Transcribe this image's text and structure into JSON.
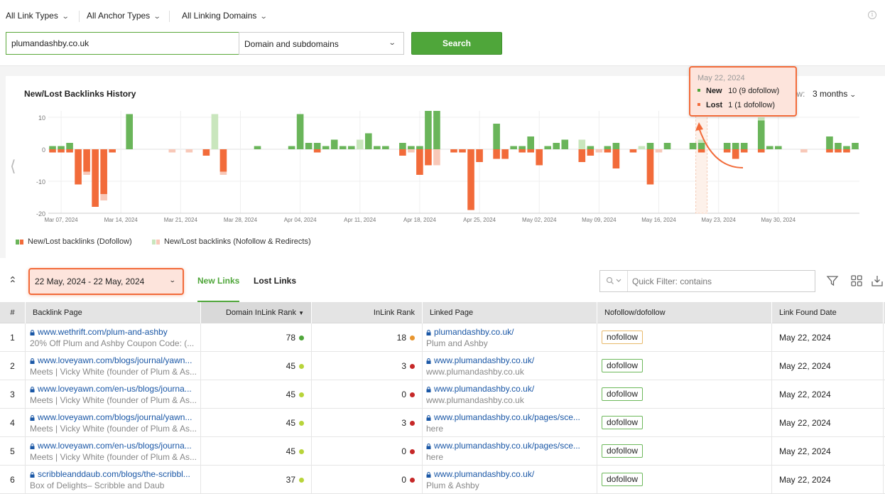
{
  "filters": {
    "link_types": "All Link Types",
    "anchor_types": "All Anchor Types",
    "linking_domains": "All Linking Domains"
  },
  "search": {
    "value": "plumandashby.co.uk",
    "scope": "Domain and subdomains",
    "button": "Search"
  },
  "chart_header": {
    "title": "New/Lost Backlinks History",
    "view_label": "iew:",
    "view_value": "3 months"
  },
  "tooltip": {
    "date": "May 22, 2024",
    "new_label": "New",
    "new_value": "10 (9 dofollow)",
    "lost_label": "Lost",
    "lost_value": "1 (1 dofollow)"
  },
  "legend": {
    "dofollow": "New/Lost backlinks (Dofollow)",
    "nofollow": "New/Lost backlinks (Nofollow & Redirects)"
  },
  "colors": {
    "new_dofollow": "#6ab55a",
    "new_nofollow": "#c9e6bd",
    "lost_dofollow": "#f26b3a",
    "lost_nofollow": "#f8c8b8",
    "accent_green": "#4fa63a",
    "highlight_orange": "#f26b3a"
  },
  "chart_data": {
    "type": "bar",
    "title": "New/Lost Backlinks History",
    "x_ticks": [
      "Mar 07, 2024",
      "Mar 14, 2024",
      "Mar 21, 2024",
      "Mar 28, 2024",
      "Apr 04, 2024",
      "Apr 11, 2024",
      "Apr 18, 2024",
      "Apr 25, 2024",
      "May 02, 2024",
      "May 09, 2024",
      "May 16, 2024",
      "May 23, 2024",
      "May 30, 2024"
    ],
    "y_ticks": [
      10,
      0,
      -10,
      -20
    ],
    "ylim": [
      -20,
      12
    ],
    "highlight_day": 76,
    "series": [
      {
        "name": "New (Dofollow)",
        "values": [
          1,
          1,
          2,
          0,
          0,
          0,
          0,
          0,
          0,
          11,
          0,
          0,
          0,
          0,
          0,
          0,
          0,
          0,
          0,
          0,
          0,
          0,
          0,
          0,
          0,
          0,
          0,
          0,
          0,
          0,
          0,
          0,
          0,
          0,
          0,
          0,
          0,
          0,
          0,
          0,
          0,
          0,
          0,
          0,
          0,
          0,
          0,
          0,
          0,
          0,
          0,
          0,
          0,
          0,
          0,
          0,
          0,
          0,
          0,
          0,
          0,
          0,
          0,
          0,
          0,
          0,
          0,
          0,
          0,
          0,
          0,
          0,
          0,
          0,
          0,
          0,
          9,
          0,
          0,
          0,
          0,
          0,
          0,
          0,
          0,
          0,
          0,
          0,
          0
        ]
      },
      {
        "name": "New (Nofollow)",
        "values": [
          0,
          0,
          0,
          0,
          0,
          0,
          0,
          0,
          0,
          0,
          0,
          0,
          0,
          0,
          0,
          0,
          0,
          0,
          0,
          0,
          0,
          0,
          0,
          0,
          0,
          0,
          0,
          0,
          0,
          0,
          0,
          0,
          0,
          0,
          0,
          0,
          0,
          0,
          0,
          0,
          0,
          0,
          0,
          0,
          0,
          0,
          0,
          0,
          0,
          0,
          0,
          0,
          0,
          0,
          0,
          0,
          0,
          0,
          0,
          0,
          0,
          0,
          0,
          0,
          0,
          0,
          0,
          0,
          0,
          0,
          0,
          0,
          0,
          0,
          0,
          0,
          1,
          0,
          0,
          0,
          0,
          0,
          0,
          0,
          0,
          0,
          0,
          0,
          0
        ]
      },
      {
        "name": "Lost (Dofollow)",
        "values": [
          -1,
          -1,
          -1,
          -11,
          -7,
          -18,
          -14,
          -1,
          0,
          0,
          0,
          0,
          0,
          0,
          0,
          0,
          0,
          0,
          0,
          0,
          0,
          0,
          0,
          0,
          0,
          0,
          0,
          0,
          0,
          0,
          0,
          0,
          0,
          0,
          0,
          0,
          0,
          0,
          0,
          0,
          0,
          0,
          0,
          0,
          0,
          0,
          0,
          0,
          0,
          0,
          0,
          0,
          0,
          0,
          0,
          0,
          0,
          0,
          0,
          0,
          0,
          0,
          0,
          0,
          0,
          0,
          0,
          0,
          0,
          0,
          0,
          0,
          0,
          0,
          0,
          0,
          -1,
          0,
          0,
          0,
          0,
          0,
          0,
          0,
          0,
          0,
          0,
          0,
          0
        ]
      },
      {
        "name": "Lost (Nofollow)",
        "values": [
          0,
          0,
          0,
          0,
          -1,
          0,
          -2,
          0,
          0,
          0,
          0,
          0,
          0,
          0,
          0,
          0,
          0,
          0,
          0,
          0,
          0,
          0,
          0,
          0,
          0,
          0,
          0,
          0,
          0,
          0,
          0,
          0,
          0,
          0,
          0,
          0,
          0,
          0,
          0,
          0,
          0,
          0,
          0,
          0,
          0,
          0,
          0,
          0,
          0,
          0,
          0,
          0,
          0,
          0,
          0,
          0,
          0,
          0,
          0,
          0,
          0,
          0,
          0,
          0,
          0,
          0,
          0,
          0,
          0,
          0,
          0,
          0,
          0,
          0,
          0,
          0,
          0,
          0,
          0,
          0,
          0,
          0,
          0,
          0,
          0,
          0,
          0,
          0,
          0
        ]
      }
    ],
    "extra_bars": [
      {
        "d": 14,
        "ln": -1
      },
      {
        "d": 16,
        "nn": 0,
        "ln": -1
      },
      {
        "d": 18,
        "nd": 0,
        "ld": -2
      },
      {
        "d": 19,
        "nn": 11
      },
      {
        "d": 20,
        "ld": -7,
        "ln": -1
      },
      {
        "d": 24,
        "nd": 1
      },
      {
        "d": 28,
        "nd": 1
      },
      {
        "d": 29,
        "nd": 11
      },
      {
        "d": 30,
        "nd": 2
      },
      {
        "d": 31,
        "nd": 2,
        "ld": -1
      },
      {
        "d": 32,
        "nd": 1
      },
      {
        "d": 33,
        "nd": 3
      },
      {
        "d": 34,
        "nd": 1
      },
      {
        "d": 35,
        "nd": 1
      },
      {
        "d": 36,
        "nn": 3
      },
      {
        "d": 37,
        "nd": 5
      },
      {
        "d": 38,
        "nd": 1
      },
      {
        "d": 39,
        "nd": 1
      },
      {
        "d": 41,
        "nd": 2,
        "ld": -2
      },
      {
        "d": 42,
        "nd": 1,
        "ln": -1
      },
      {
        "d": 43,
        "nd": 1,
        "ld": -8
      },
      {
        "d": 44,
        "nd": 12,
        "ld": -5
      },
      {
        "d": 45,
        "nd": 12,
        "ln": -5
      },
      {
        "d": 47,
        "ld": -1
      },
      {
        "d": 48,
        "ld": -1
      },
      {
        "d": 49,
        "ld": -19
      },
      {
        "d": 50,
        "ld": -4
      },
      {
        "d": 52,
        "nd": 8,
        "ld": -3
      },
      {
        "d": 53,
        "ld": -3
      },
      {
        "d": 54,
        "nd": 1
      },
      {
        "d": 55,
        "nd": 1,
        "ld": -1
      },
      {
        "d": 56,
        "nd": 4,
        "ld": -1
      },
      {
        "d": 57,
        "ld": -5
      },
      {
        "d": 58,
        "nd": 1
      },
      {
        "d": 59,
        "nd": 2
      },
      {
        "d": 60,
        "nd": 3
      },
      {
        "d": 62,
        "nn": 3,
        "ld": -4
      },
      {
        "d": 63,
        "nd": 1,
        "ld": -2
      },
      {
        "d": 64,
        "ln": -1
      },
      {
        "d": 65,
        "nd": 1,
        "ld": -1
      },
      {
        "d": 66,
        "nd": 2,
        "ld": -6
      },
      {
        "d": 68,
        "ld": -1
      },
      {
        "d": 69,
        "nn": 1
      },
      {
        "d": 70,
        "nd": 2,
        "ld": -11
      },
      {
        "d": 71,
        "ln": -1
      },
      {
        "d": 72,
        "nd": 2
      },
      {
        "d": 75,
        "nd": 2
      },
      {
        "d": 76,
        "nd": 2
      },
      {
        "d": 79,
        "nd": 2,
        "ld": -1
      },
      {
        "d": 80,
        "nd": 2,
        "ld": -3
      },
      {
        "d": 81,
        "nd": 2,
        "ld": -1
      },
      {
        "d": 83,
        "nd": 9,
        "ld": -1,
        "nn": 1
      },
      {
        "d": 84,
        "nd": 1
      },
      {
        "d": 85,
        "nd": 1
      },
      {
        "d": 88,
        "ln": -1
      },
      {
        "d": 91,
        "nd": 4,
        "ld": -1
      },
      {
        "d": 92,
        "nd": 2,
        "ld": -1
      },
      {
        "d": 93,
        "nd": 1,
        "ld": -1
      },
      {
        "d": 94,
        "nd": 2
      }
    ]
  },
  "toolbar": {
    "date_range": "22 May, 2024 - 22 May, 2024",
    "tab_new": "New Links",
    "tab_lost": "Lost Links",
    "quick_filter_placeholder": "Quick Filter: contains"
  },
  "table": {
    "headers": {
      "index": "#",
      "backlink_page": "Backlink Page",
      "domain_inlink_rank": "Domain InLink Rank",
      "inlink_rank": "InLink Rank",
      "linked_page": "Linked Page",
      "nofollow_dofollow": "Nofollow/dofollow",
      "link_found_date": "Link Found Date"
    },
    "rows": [
      {
        "n": "1",
        "url": "www.wethrift.com/plum-and-ashby",
        "title": "20% Off Plum and Ashby Coupon Code: (...",
        "drank": "78",
        "drank_color": "#4fa63a",
        "irank": "18",
        "irank_color": "#e8952f",
        "linked": "plumandashby.co.uk/",
        "linked_sub": "Plum and Ashby",
        "follow": "nofollow",
        "date": "May 22, 2024"
      },
      {
        "n": "2",
        "url": "www.loveyawn.com/blogs/journal/yawn...",
        "title": "Meets | Vicky White (founder of Plum & As...",
        "drank": "45",
        "drank_color": "#b8d43a",
        "irank": "3",
        "irank_color": "#c62828",
        "linked": "www.plumandashby.co.uk/",
        "linked_sub": "www.plumandashby.co.uk",
        "follow": "dofollow",
        "date": "May 22, 2024"
      },
      {
        "n": "3",
        "url": "www.loveyawn.com/en-us/blogs/journa...",
        "title": "Meets | Vicky White (founder of Plum & As...",
        "drank": "45",
        "drank_color": "#b8d43a",
        "irank": "0",
        "irank_color": "#c62828",
        "linked": "www.plumandashby.co.uk/",
        "linked_sub": "www.plumandashby.co.uk",
        "follow": "dofollow",
        "date": "May 22, 2024"
      },
      {
        "n": "4",
        "url": "www.loveyawn.com/blogs/journal/yawn...",
        "title": "Meets | Vicky White (founder of Plum & As...",
        "drank": "45",
        "drank_color": "#b8d43a",
        "irank": "3",
        "irank_color": "#c62828",
        "linked": "www.plumandashby.co.uk/pages/sce...",
        "linked_sub": "here",
        "follow": "dofollow",
        "date": "May 22, 2024"
      },
      {
        "n": "5",
        "url": "www.loveyawn.com/en-us/blogs/journa...",
        "title": "Meets | Vicky White (founder of Plum & As...",
        "drank": "45",
        "drank_color": "#b8d43a",
        "irank": "0",
        "irank_color": "#c62828",
        "linked": "www.plumandashby.co.uk/pages/sce...",
        "linked_sub": "here",
        "follow": "dofollow",
        "date": "May 22, 2024"
      },
      {
        "n": "6",
        "url": "scribbleanddaub.com/blogs/the-scribbl...",
        "title": "Box of Delights– Scribble and Daub",
        "drank": "37",
        "drank_color": "#b8d43a",
        "irank": "0",
        "irank_color": "#c62828",
        "linked": "www.plumandashby.co.uk/",
        "linked_sub": "Plum & Ashby",
        "follow": "dofollow",
        "date": "May 22, 2024"
      }
    ]
  }
}
